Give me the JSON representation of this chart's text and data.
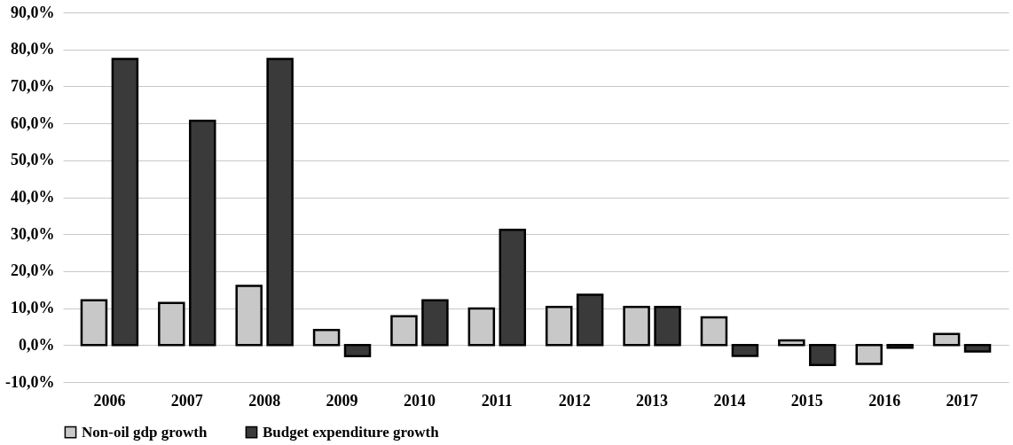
{
  "chart_data": {
    "type": "bar",
    "categories": [
      "2006",
      "2007",
      "2008",
      "2009",
      "2010",
      "2011",
      "2012",
      "2013",
      "2014",
      "2015",
      "2016",
      "2017"
    ],
    "series": [
      {
        "name": "Non-oil gdp growth",
        "color": "#c8c8c8",
        "values": [
          12.1,
          11.4,
          16.0,
          4.1,
          7.8,
          9.9,
          10.3,
          10.3,
          7.5,
          1.3,
          -5.1,
          3.0
        ]
      },
      {
        "name": "Budget expenditure growth",
        "color": "#3a3a3a",
        "values": [
          77.4,
          60.7,
          77.4,
          -3.0,
          12.1,
          31.2,
          13.6,
          10.3,
          -2.9,
          -5.4,
          -0.7,
          -1.7
        ]
      }
    ],
    "ylim": [
      -10,
      90
    ],
    "yticks": [
      {
        "value": -10,
        "label": "-10,0%"
      },
      {
        "value": 0,
        "label": "0,0%"
      },
      {
        "value": 10,
        "label": "10,0%"
      },
      {
        "value": 20,
        "label": "20,0%"
      },
      {
        "value": 30,
        "label": "30,0%"
      },
      {
        "value": 40,
        "label": "40,0%"
      },
      {
        "value": 50,
        "label": "50,0%"
      },
      {
        "value": 60,
        "label": "60,0%"
      },
      {
        "value": 70,
        "label": "70,0%"
      },
      {
        "value": 80,
        "label": "80,0%"
      },
      {
        "value": 90,
        "label": "90,0%"
      }
    ],
    "grid": "y",
    "legend": "bottom"
  }
}
